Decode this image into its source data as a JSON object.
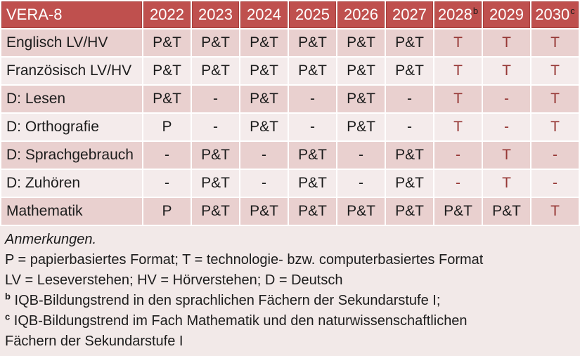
{
  "colors": {
    "header_bg": "#bf504e",
    "header_text": "#ffffff",
    "row_band_dark": "#e9d0cf",
    "row_band_light": "#f4ebeb",
    "notes_bg": "#f2e9e8",
    "accent_red_text": "#963735",
    "body_text": "#1c1c1c"
  },
  "table": {
    "columns": [
      {
        "label": "VERA-8"
      },
      {
        "label": "2022"
      },
      {
        "label": "2023"
      },
      {
        "label": "2024"
      },
      {
        "label": "2025"
      },
      {
        "label": "2026"
      },
      {
        "label": "2027"
      },
      {
        "label": "2028",
        "sup": "b"
      },
      {
        "label": "2029"
      },
      {
        "label": "2030",
        "sup": "c"
      }
    ],
    "rows": [
      {
        "label": "Englisch LV/HV",
        "cells": [
          {
            "text": "P&T"
          },
          {
            "text": "P&T"
          },
          {
            "text": "P&T"
          },
          {
            "text": "P&T"
          },
          {
            "text": "P&T"
          },
          {
            "text": "P&T"
          },
          {
            "text": "T",
            "red": true
          },
          {
            "text": "T",
            "red": true
          },
          {
            "text": "T",
            "red": true
          }
        ]
      },
      {
        "label": "Französisch LV/HV",
        "cells": [
          {
            "text": "P&T"
          },
          {
            "text": "P&T"
          },
          {
            "text": "P&T"
          },
          {
            "text": "P&T"
          },
          {
            "text": "P&T"
          },
          {
            "text": "P&T"
          },
          {
            "text": "T",
            "red": true
          },
          {
            "text": "T",
            "red": true
          },
          {
            "text": "T",
            "red": true
          }
        ]
      },
      {
        "label": "D: Lesen",
        "cells": [
          {
            "text": "P&T"
          },
          {
            "text": "-"
          },
          {
            "text": "P&T"
          },
          {
            "text": "-"
          },
          {
            "text": "P&T"
          },
          {
            "text": "-"
          },
          {
            "text": "T",
            "red": true
          },
          {
            "text": "-",
            "red": true
          },
          {
            "text": "T",
            "red": true
          }
        ]
      },
      {
        "label": "D: Orthografie",
        "cells": [
          {
            "text": "P"
          },
          {
            "text": "-"
          },
          {
            "text": "P&T"
          },
          {
            "text": "-"
          },
          {
            "text": "P&T"
          },
          {
            "text": "-"
          },
          {
            "text": "T",
            "red": true
          },
          {
            "text": "-",
            "red": true
          },
          {
            "text": "T",
            "red": true
          }
        ]
      },
      {
        "label": "D: Sprachgebrauch",
        "cells": [
          {
            "text": "-"
          },
          {
            "text": "P&T"
          },
          {
            "text": "-"
          },
          {
            "text": "P&T"
          },
          {
            "text": "-"
          },
          {
            "text": "P&T"
          },
          {
            "text": "-",
            "red": true
          },
          {
            "text": "T",
            "red": true
          },
          {
            "text": "-",
            "red": true
          }
        ]
      },
      {
        "label": "D: Zuhören",
        "cells": [
          {
            "text": "-"
          },
          {
            "text": "P&T"
          },
          {
            "text": "-"
          },
          {
            "text": "P&T"
          },
          {
            "text": "-"
          },
          {
            "text": "P&T"
          },
          {
            "text": "-",
            "red": true
          },
          {
            "text": "T",
            "red": true
          },
          {
            "text": "-",
            "red": true
          }
        ]
      },
      {
        "label": "Mathematik",
        "cells": [
          {
            "text": "P"
          },
          {
            "text": "P&T"
          },
          {
            "text": "P&T"
          },
          {
            "text": "P&T"
          },
          {
            "text": "P&T"
          },
          {
            "text": "P&T"
          },
          {
            "text": "P&T"
          },
          {
            "text": "P&T"
          },
          {
            "text": "T",
            "red": true
          }
        ]
      }
    ]
  },
  "notes": {
    "heading": "Anmerkungen.",
    "lines": [
      {
        "text": "P = papierbasiertes Format; T = technologie- bzw. computerbasiertes Format"
      },
      {
        "text": "LV = Leseverstehen; HV = Hörverstehen; D = Deutsch"
      },
      {
        "sup": "b",
        "text": "IQB-Bildungstrend in den sprachlichen Fächern der Sekundarstufe I;"
      },
      {
        "sup": "c",
        "text": "IQB-Bildungstrend im Fach Mathematik und den naturwissenschaftlichen"
      },
      {
        "text": "Fächern der Sekundarstufe I"
      }
    ]
  }
}
